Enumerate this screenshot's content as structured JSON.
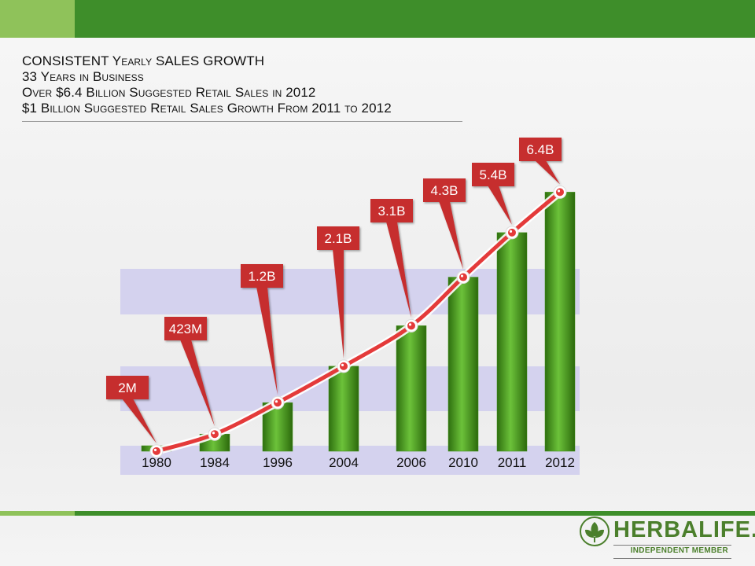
{
  "headline": {
    "line1": "CONSISTENT Yearly SALES GROWTH",
    "line2": "33 Years in Business",
    "line3": "Over $6.4 Billion Suggested Retail Sales in 2012",
    "line4": "$1 Billion Suggested Retail Sales Growth From 2011 to 2012"
  },
  "brand": {
    "name": "HERBALIFE.",
    "tagline": "INDEPENDENT MEMBER"
  },
  "colors": {
    "bar_green": "#3f8f17",
    "line_red": "#e43a3a",
    "label_red": "#c62d2d",
    "band_lavender": "#d4d2ee",
    "brand_green": "#4b7f2c"
  },
  "chart_data": {
    "type": "bar",
    "title": "CONSISTENT Yearly SALES GROWTH",
    "xlabel": "",
    "ylabel": "",
    "units": "Suggested Retail Sales (USD)",
    "categories": [
      "1980",
      "1984",
      "1996",
      "2004",
      "2006",
      "2010",
      "2011",
      "2012"
    ],
    "values": [
      0.002,
      0.423,
      1.2,
      2.1,
      3.1,
      4.3,
      5.4,
      6.4
    ],
    "value_unit": "billion USD",
    "data_labels": [
      "2M",
      "423M",
      "1.2B",
      "2.1B",
      "3.1B",
      "4.3B",
      "5.4B",
      "6.4B"
    ],
    "overlay_line": "trend line through bar tops with point markers",
    "grid": false,
    "legend": "none"
  }
}
